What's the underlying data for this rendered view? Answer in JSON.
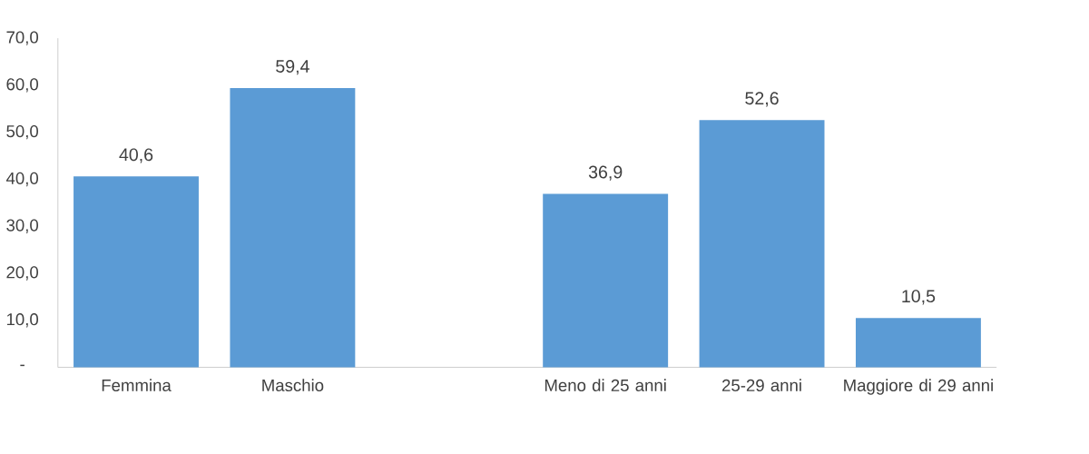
{
  "chart_data": {
    "type": "bar",
    "categories": [
      "Femmina",
      "Maschio",
      null,
      "Meno di 25 anni",
      "25-29 anni",
      "Maggiore di 29 anni"
    ],
    "values": [
      40.6,
      59.4,
      null,
      36.9,
      52.6,
      10.5
    ],
    "value_labels": [
      "40,6",
      "59,4",
      null,
      "36,9",
      "52,6",
      "10,5"
    ],
    "color": "#5b9bd5",
    "ylim": [
      0,
      70
    ],
    "yticks": [
      {
        "value": 0,
        "label": "-"
      },
      {
        "value": 10,
        "label": "10,0"
      },
      {
        "value": 20,
        "label": "20,0"
      },
      {
        "value": 30,
        "label": "30,0"
      },
      {
        "value": 40,
        "label": "40,0"
      },
      {
        "value": 50,
        "label": "50,0"
      },
      {
        "value": 60,
        "label": "60,0"
      },
      {
        "value": 70,
        "label": "70,0"
      }
    ]
  }
}
